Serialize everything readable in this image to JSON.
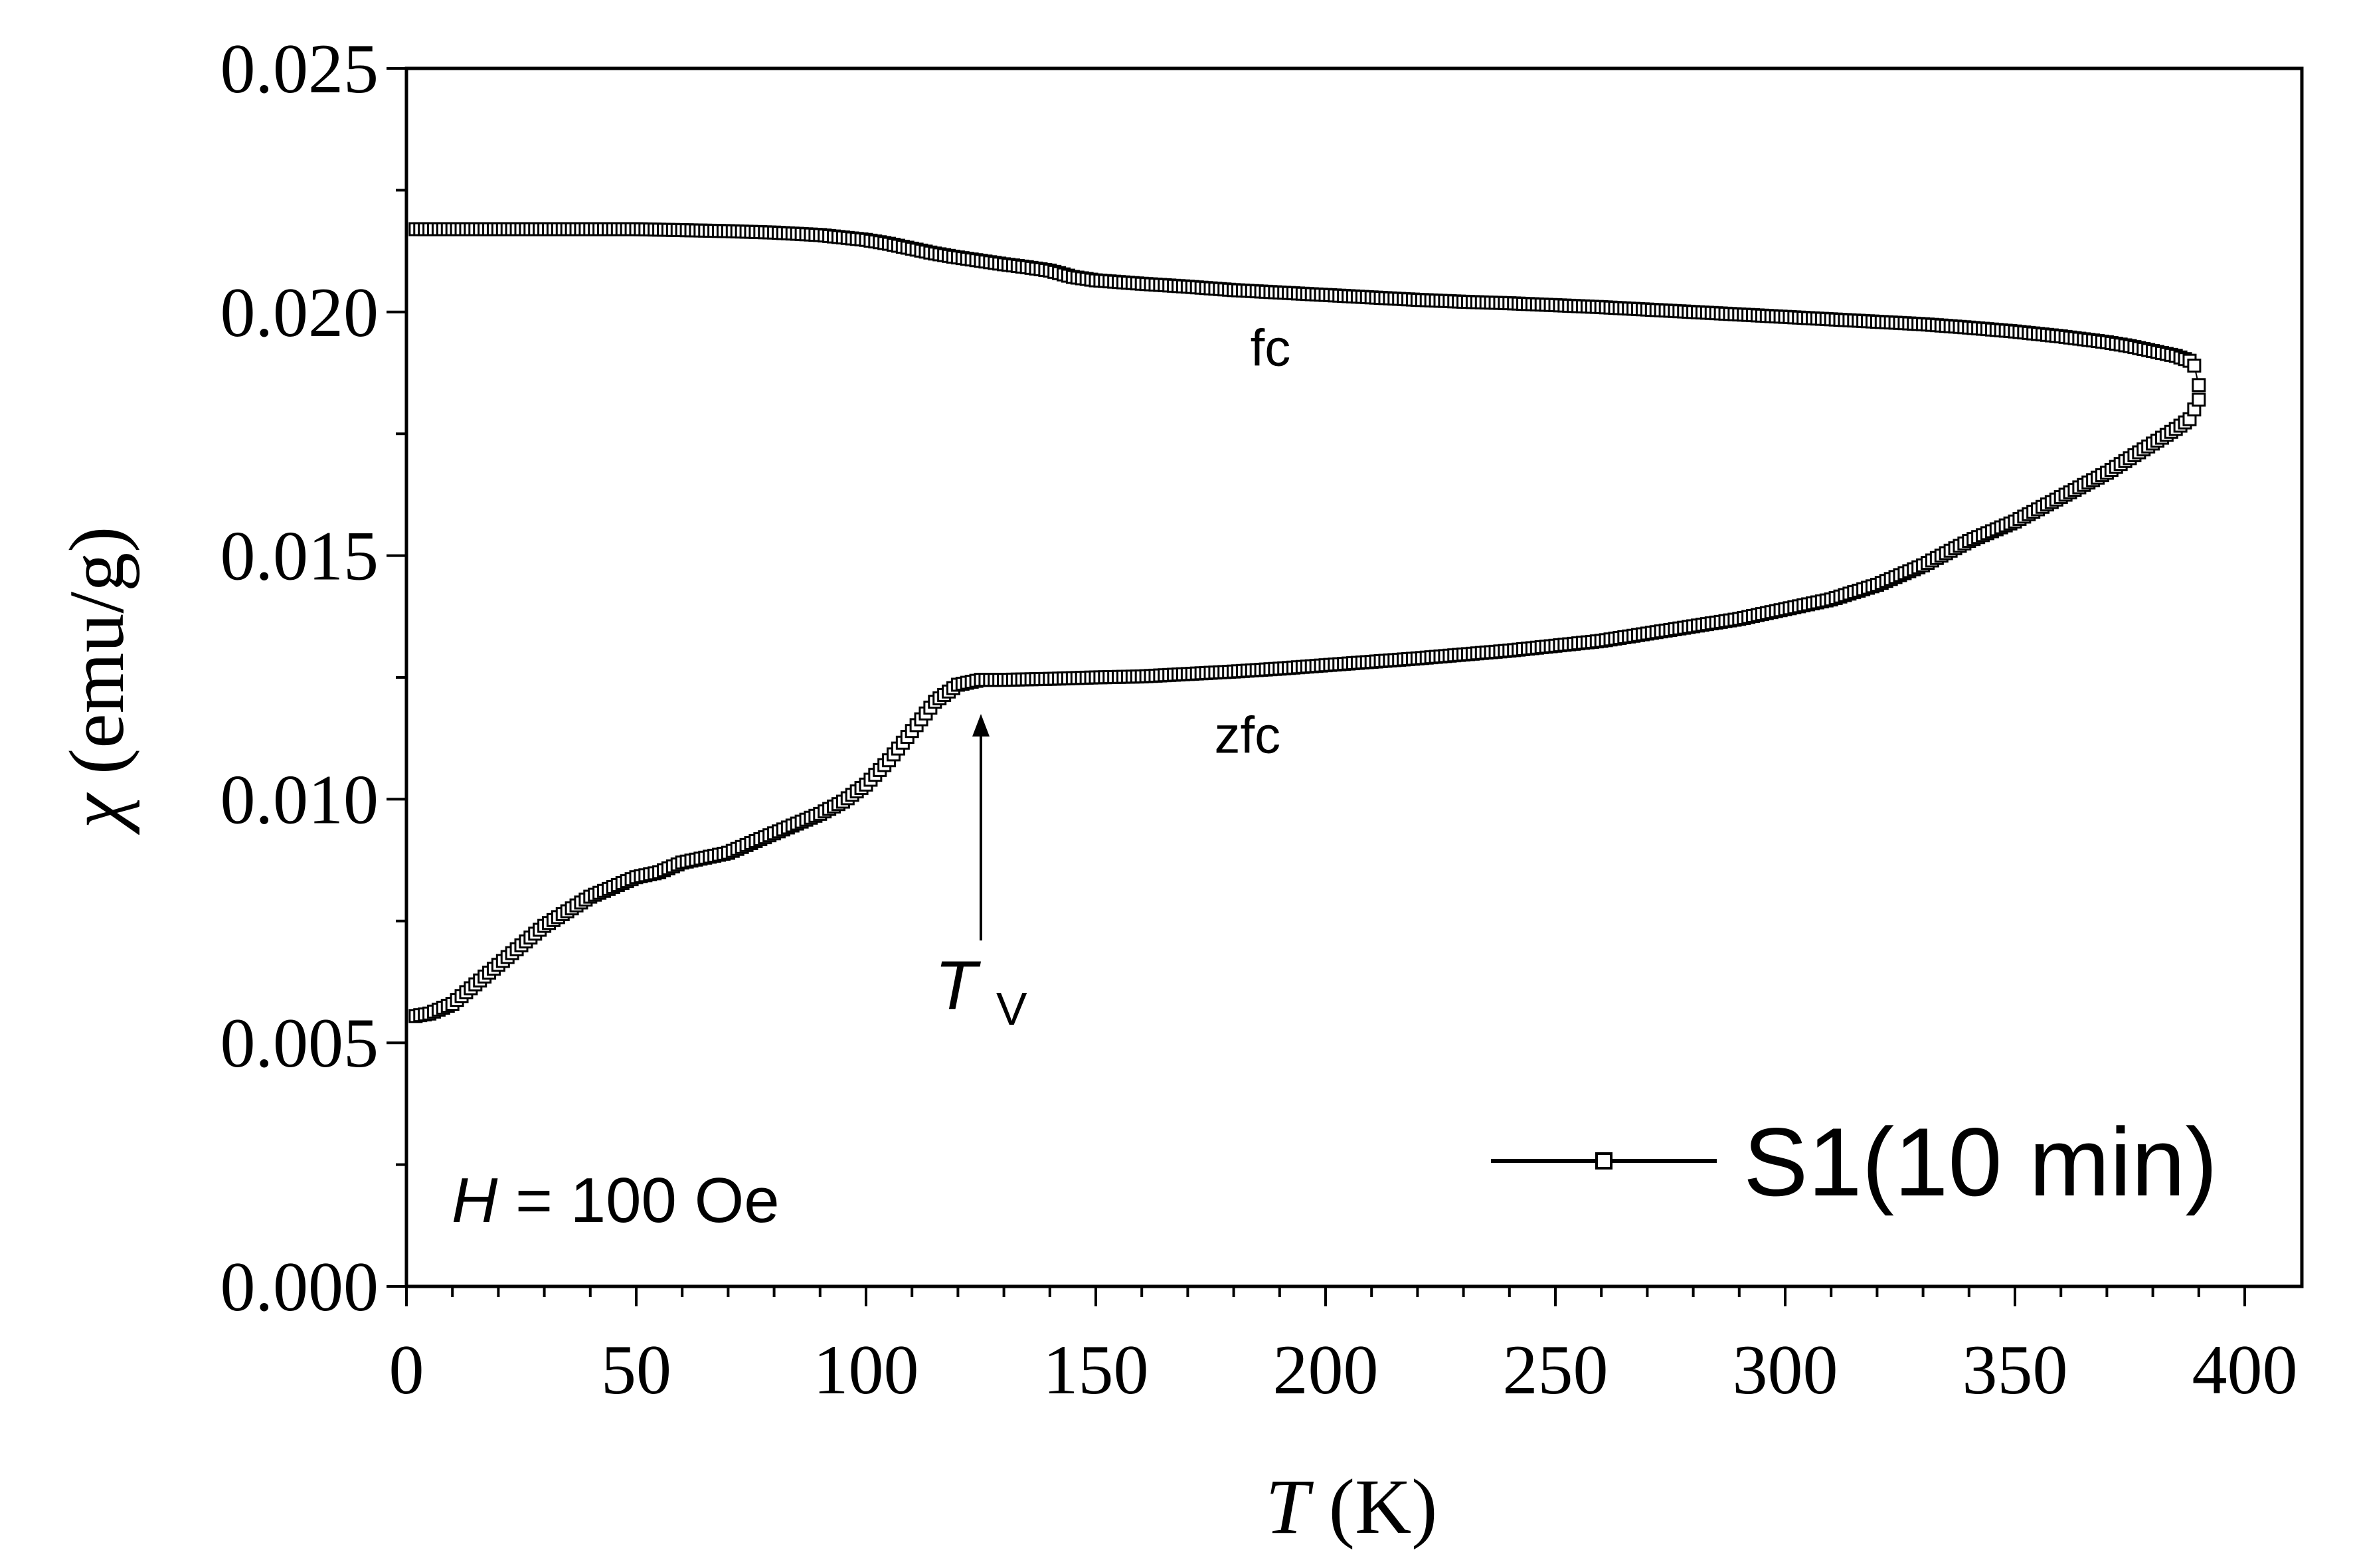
{
  "chart_data": {
    "type": "scatter",
    "x_axis": {
      "title_symbol": "T",
      "title_unit": "(K)",
      "range": [
        0,
        410
      ],
      "ticks": [
        0,
        50,
        100,
        150,
        200,
        250,
        300,
        350,
        400
      ],
      "tick_labels": [
        "0",
        "50",
        "100",
        "150",
        "200",
        "250",
        "300",
        "350",
        "400"
      ]
    },
    "y_axis": {
      "title_symbol": "χ",
      "title_unit": "(emu/g)",
      "range": [
        0.0,
        0.025
      ],
      "ticks": [
        0.0,
        0.005,
        0.01,
        0.015,
        0.02,
        0.025
      ],
      "tick_labels": [
        "0.000",
        "0.005",
        "0.010",
        "0.015",
        "0.020",
        "0.025"
      ]
    },
    "grid": false,
    "legend": {
      "position": "bottom-right",
      "entries": [
        "S1(10 min)"
      ]
    },
    "series": [
      {
        "name": "S1(10 min)",
        "marker": "open-square",
        "color": "#000000",
        "curves": [
          {
            "id": "zfc",
            "x": [
              2,
              5,
              10,
              15,
              20,
              25,
              30,
              35,
              40,
              45,
              50,
              55,
              60,
              65,
              70,
              75,
              80,
              85,
              90,
              95,
              100,
              105,
              110,
              115,
              120,
              125,
              130,
              140,
              150,
              160,
              170,
              180,
              190,
              200,
              210,
              220,
              230,
              240,
              250,
              260,
              270,
              280,
              290,
              300,
              310,
              320,
              330,
              340,
              350,
              360,
              370,
              375,
              380,
              385,
              388,
              390
            ],
            "y": [
              0.00555,
              0.0056,
              0.0058,
              0.0062,
              0.0066,
              0.007,
              0.0074,
              0.0077,
              0.008,
              0.0082,
              0.0084,
              0.0085,
              0.0087,
              0.0088,
              0.0089,
              0.0091,
              0.0093,
              0.0095,
              0.0097,
              0.00995,
              0.0103,
              0.0108,
              0.0114,
              0.012,
              0.01235,
              0.01245,
              0.01245,
              0.01247,
              0.0125,
              0.01252,
              0.01257,
              0.01262,
              0.01268,
              0.01275,
              0.01282,
              0.01289,
              0.01297,
              0.01305,
              0.01315,
              0.01325,
              0.0134,
              0.01355,
              0.0137,
              0.0139,
              0.0141,
              0.0144,
              0.0148,
              0.0153,
              0.0157,
              0.0162,
              0.0167,
              0.017,
              0.0173,
              0.0176,
              0.0178,
              0.0182
            ]
          },
          {
            "id": "fc",
            "x": [
              2,
              10,
              20,
              30,
              40,
              50,
              60,
              70,
              80,
              90,
              100,
              105,
              110,
              115,
              120,
              125,
              130,
              135,
              140,
              145,
              150,
              160,
              170,
              180,
              190,
              200,
              210,
              220,
              230,
              240,
              250,
              260,
              270,
              280,
              290,
              300,
              310,
              320,
              330,
              340,
              350,
              360,
              370,
              375,
              380,
              385,
              388,
              389,
              390
            ],
            "y": [
              0.0217,
              0.0217,
              0.0217,
              0.0217,
              0.0217,
              0.0217,
              0.02168,
              0.02166,
              0.02163,
              0.02158,
              0.02148,
              0.0214,
              0.0213,
              0.0212,
              0.02112,
              0.02105,
              0.02098,
              0.02092,
              0.02085,
              0.02072,
              0.02065,
              0.02058,
              0.02052,
              0.02045,
              0.0204,
              0.02035,
              0.0203,
              0.02025,
              0.02021,
              0.02018,
              0.02014,
              0.0201,
              0.02005,
              0.02,
              0.01995,
              0.0199,
              0.01985,
              0.0198,
              0.01975,
              0.01968,
              0.0196,
              0.0195,
              0.01938,
              0.0193,
              0.0192,
              0.0191,
              0.019,
              0.0189,
              0.0185
            ]
          }
        ]
      }
    ],
    "annotations": {
      "fc_label": {
        "text": "fc",
        "x": 188,
        "y": 0.0189
      },
      "zfc_label": {
        "text": "zfc",
        "x": 183,
        "y": 0.01095
      },
      "tv_arrow": {
        "x": 125,
        "y_from": 0.0071,
        "y_to": 0.01175
      },
      "tv_label": {
        "symbol": "T",
        "subscript": "V",
        "x": 125,
        "y": 0.0057
      },
      "field": {
        "symbol": "H",
        "text": " = 100 Oe"
      }
    }
  }
}
